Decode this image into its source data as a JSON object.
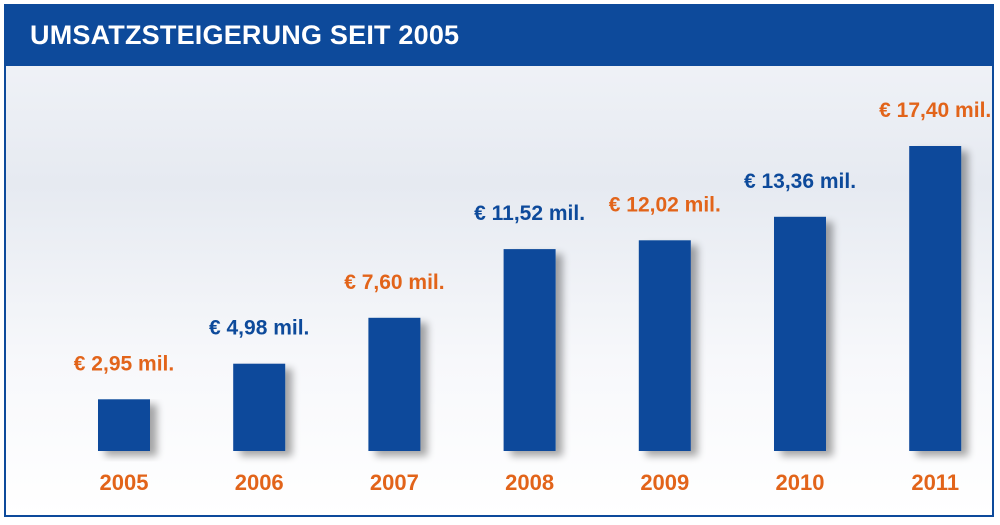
{
  "colors": {
    "bar": "#0d4a9b",
    "orange": "#e2641a",
    "blue": "#0d4a9b",
    "header": "#0d4a9b"
  },
  "chart_data": {
    "type": "bar",
    "title": "UMSATZSTEIGERUNG SEIT 2005",
    "categories": [
      "2005",
      "2006",
      "2007",
      "2008",
      "2009",
      "2010",
      "2011"
    ],
    "values": [
      2.95,
      4.98,
      7.6,
      11.52,
      12.02,
      13.36,
      17.4
    ],
    "data_labels": [
      "€ 2,95 mil.",
      "€ 4,98 mil.",
      "€ 7,60 mil.",
      "€ 11,52 mil.",
      "€ 12,02 mil.",
      "€ 13,36 mil.",
      "€ 17,40 mil."
    ],
    "label_colors": [
      "orange",
      "blue",
      "orange",
      "blue",
      "orange",
      "blue",
      "orange"
    ],
    "xlabel": "",
    "ylabel": "",
    "ylim": [
      0,
      18
    ],
    "grid": false,
    "legend": "none"
  }
}
